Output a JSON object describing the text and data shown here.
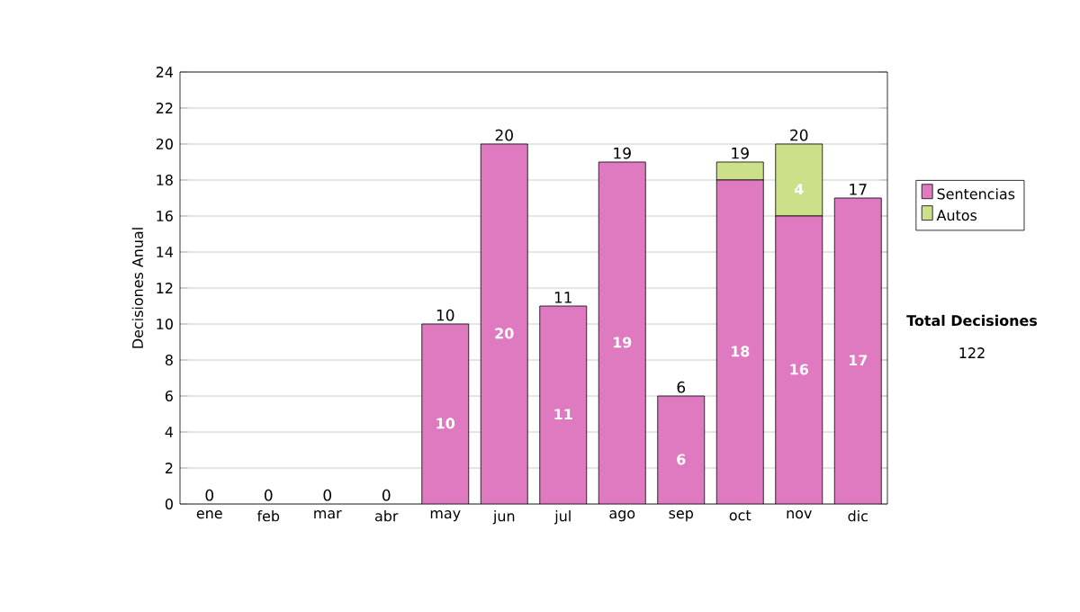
{
  "chart_data": {
    "type": "bar",
    "stacked": true,
    "ylabel": "Decisiones Anual",
    "categories": [
      "ene",
      "feb",
      "mar",
      "abr",
      "may",
      "jun",
      "jul",
      "ago",
      "sep",
      "oct",
      "nov",
      "dic"
    ],
    "series": [
      {
        "name": "Sentencias",
        "color": "#e07ac0",
        "values": [
          0,
          0,
          0,
          0,
          10,
          20,
          11,
          19,
          6,
          18,
          16,
          17
        ],
        "value_labels": [
          null,
          null,
          null,
          null,
          "10",
          "20",
          "11",
          "19",
          "6",
          "18",
          "16",
          "17"
        ]
      },
      {
        "name": "Autos",
        "color": "#cce08a",
        "values": [
          0,
          0,
          0,
          0,
          0,
          0,
          0,
          0,
          0,
          1,
          4,
          0
        ],
        "value_labels": [
          null,
          null,
          null,
          null,
          null,
          null,
          null,
          null,
          null,
          null,
          "4",
          null
        ]
      }
    ],
    "totals": [
      "0",
      "0",
      "0",
      "0",
      "10",
      "20",
      "11",
      "19",
      "6",
      "19",
      "20",
      "17"
    ],
    "ylim": [
      0,
      24
    ],
    "yticks": [
      0,
      2,
      4,
      6,
      8,
      10,
      12,
      14,
      16,
      18,
      20,
      22,
      24
    ],
    "grid": "y",
    "legend": "right",
    "annotations": [
      "Total Decisiones",
      "122"
    ]
  }
}
